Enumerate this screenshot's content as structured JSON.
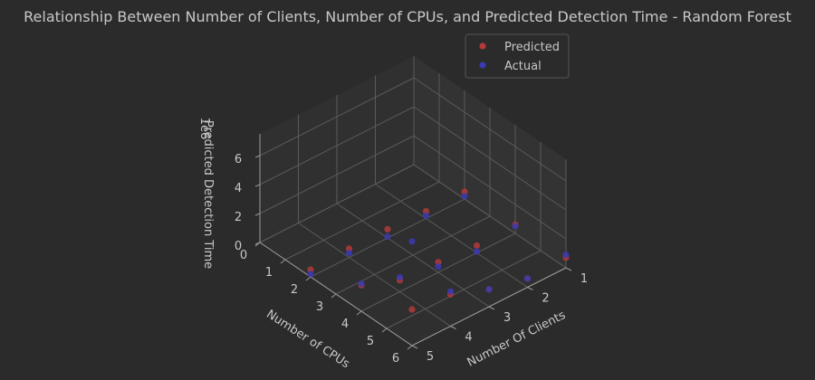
{
  "chart_data": {
    "type": "scatter",
    "title": "Relationship Between Number of Clients, Number of CPUs, and Predicted Detection Time - Random Forest",
    "xlabel": "Number Of Clients",
    "ylabel": "Number of CPUs",
    "zlabel": "Predicted Detection Time",
    "z_offset_label": "1e6",
    "xlim": [
      1,
      5
    ],
    "ylim": [
      0,
      6
    ],
    "zlim": [
      0,
      7.5
    ],
    "x_ticks": [
      "1",
      "2",
      "3",
      "4",
      "5"
    ],
    "y_ticks": [
      "0",
      "1",
      "2",
      "3",
      "4",
      "5",
      "6"
    ],
    "z_ticks": [
      "0",
      "2",
      "4",
      "6"
    ],
    "legend_position": "top-right",
    "colors": {
      "predicted": "#b23a3a",
      "actual": "#3a3ab0",
      "background": "#2b2b2b",
      "text": "#c8c8c8"
    },
    "series": [
      {
        "name": "Predicted",
        "points": [
          [
            1,
            2,
            0.5
          ],
          [
            1,
            4,
            0.6
          ],
          [
            1,
            6,
            0.7
          ],
          [
            2,
            2,
            0.5
          ],
          [
            2,
            4,
            0.5
          ],
          [
            2,
            6,
            0.6
          ],
          [
            3,
            2,
            0.6
          ],
          [
            3,
            4,
            0.7
          ],
          [
            3,
            6,
            1.2
          ],
          [
            4,
            2,
            0.6
          ],
          [
            4,
            4,
            0.8
          ],
          [
            4,
            6,
            2.2
          ],
          [
            5,
            2,
            0.5
          ],
          [
            5,
            4,
            1.8
          ],
          [
            5,
            6,
            2.5
          ]
        ]
      },
      {
        "name": "Actual",
        "points": [
          [
            1,
            2,
            0.2
          ],
          [
            1,
            4,
            0.5
          ],
          [
            1,
            6,
            0.9
          ],
          [
            2,
            2,
            0.2
          ],
          [
            2,
            4,
            0.1
          ],
          [
            2,
            6,
            0.6
          ],
          [
            3,
            2,
            0.1
          ],
          [
            3,
            4,
            0.4
          ],
          [
            3,
            6,
            1.2
          ],
          [
            4,
            2,
            0.3
          ],
          [
            4,
            4,
            1.0
          ],
          [
            4,
            6,
            2.4
          ],
          [
            5,
            2,
            0.2
          ],
          [
            5,
            4,
            1.9
          ],
          [
            5,
            6,
            7.2
          ]
        ]
      }
    ]
  }
}
